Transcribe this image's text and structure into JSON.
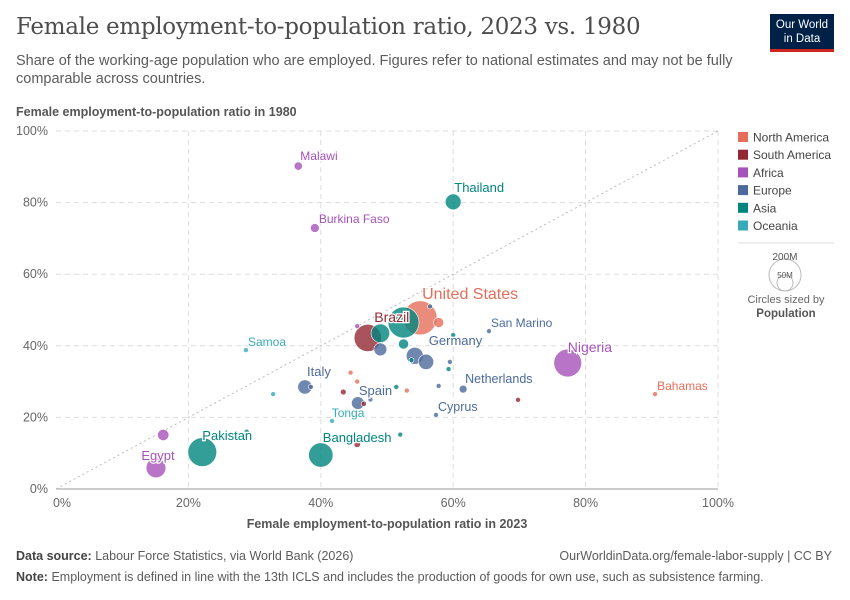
{
  "title": "Female employment-to-population ratio, 2023 vs. 1980",
  "subtitle": "Share of the working-age population who are employed. Figures refer to national estimates and may not be fully comparable across countries.",
  "logo": {
    "line1": "Our World",
    "line2": "in Data"
  },
  "footer": {
    "source_label": "Data source:",
    "source": "Labour Force Statistics, via World Bank (2026)",
    "url": "OurWorldinData.org/female-labor-supply | CC BY",
    "note_label": "Note:",
    "note": "Employment is defined in line with the 13th ICLS and includes the production of goods for own use, such as subsistence farming."
  },
  "chart_data": {
    "type": "scatter",
    "xlabel": "Female employment-to-population ratio in 2023",
    "ylabel": "Female employment-to-population ratio in 1980",
    "xlim": [
      0,
      100
    ],
    "ylim": [
      0,
      100
    ],
    "xticks": [
      "0%",
      "20%",
      "40%",
      "60%",
      "80%",
      "100%"
    ],
    "yticks": [
      "0%",
      "20%",
      "40%",
      "60%",
      "80%",
      "100%"
    ],
    "grid": true,
    "legend_position": "right",
    "diagonal_line": true,
    "colors": {
      "North America": "#e56e5a",
      "South America": "#932834",
      "Africa": "#a652ba",
      "Europe": "#4c6a9c",
      "Asia": "#00847e",
      "Oceania": "#38aaba"
    },
    "legend": [
      "North America",
      "South America",
      "Africa",
      "Europe",
      "Asia",
      "Oceania"
    ],
    "size_legend": {
      "large": "200M",
      "small": "50M",
      "caption": "Circles sized by",
      "variable": "Population"
    },
    "points": [
      {
        "label": "Malawi",
        "region": "Africa",
        "x": 36.6,
        "y": 90.2,
        "pop": 20
      },
      {
        "label": "Thailand",
        "region": "Asia",
        "x": 60.0,
        "y": 80.2,
        "pop": 72
      },
      {
        "label": "Burkina Faso",
        "region": "Africa",
        "x": 39.1,
        "y": 72.9,
        "pop": 23
      },
      {
        "label": "United States",
        "region": "North America",
        "x": 55.0,
        "y": 47.8,
        "pop": 335
      },
      {
        "label": "",
        "region": "North America",
        "x": 57.8,
        "y": 46.5,
        "pop": 30
      },
      {
        "label": "Brazil",
        "region": "South America",
        "x": 47.1,
        "y": 42.2,
        "pop": 216
      },
      {
        "label": "",
        "region": "Asia",
        "x": 52.5,
        "y": 46.5,
        "pop": 277
      },
      {
        "label": "",
        "region": "Asia",
        "x": 49.0,
        "y": 43.5,
        "pop": 100
      },
      {
        "label": "",
        "region": "Europe",
        "x": 49.0,
        "y": 39.0,
        "pop": 48
      },
      {
        "label": "Germany",
        "region": "Europe",
        "x": 54.2,
        "y": 37.2,
        "pop": 84
      },
      {
        "label": "",
        "region": "Europe",
        "x": 55.9,
        "y": 35.5,
        "pop": 68
      },
      {
        "label": "",
        "region": "Asia",
        "x": 52.5,
        "y": 40.5,
        "pop": 30
      },
      {
        "label": "",
        "region": "Asia",
        "x": 53.7,
        "y": 36.0,
        "pop": 6
      },
      {
        "label": "",
        "region": "Europe",
        "x": 59.5,
        "y": 35.5,
        "pop": 5
      },
      {
        "label": "",
        "region": "Asia",
        "x": 59.3,
        "y": 33.5,
        "pop": 3
      },
      {
        "label": "",
        "region": "Asia",
        "x": 60.0,
        "y": 43.0,
        "pop": 2
      },
      {
        "label": "",
        "region": "Africa",
        "x": 45.5,
        "y": 45.5,
        "pop": 2
      },
      {
        "label": "",
        "region": "Europe",
        "x": 56.5,
        "y": 51.0,
        "pop": 3
      },
      {
        "label": "Nigeria",
        "region": "Africa",
        "x": 77.3,
        "y": 35.2,
        "pop": 224
      },
      {
        "label": "Bahamas",
        "region": "North America",
        "x": 90.5,
        "y": 26.5,
        "pop": 0.4
      },
      {
        "label": "San Marino",
        "region": "Europe",
        "x": 65.4,
        "y": 44.1,
        "pop": 0.03
      },
      {
        "label": "Netherlands",
        "region": "Europe",
        "x": 61.5,
        "y": 27.9,
        "pop": 18
      },
      {
        "label": "Cyprus",
        "region": "Europe",
        "x": 57.4,
        "y": 20.7,
        "pop": 1.3
      },
      {
        "label": "",
        "region": "Europe",
        "x": 57.8,
        "y": 28.8,
        "pop": 1
      },
      {
        "label": "",
        "region": "Asia",
        "x": 51.4,
        "y": 28.5,
        "pop": 1
      },
      {
        "label": "",
        "region": "North America",
        "x": 53.0,
        "y": 27.5,
        "pop": 1
      },
      {
        "label": "",
        "region": "North America",
        "x": 44.5,
        "y": 32.5,
        "pop": 1
      },
      {
        "label": "",
        "region": "North America",
        "x": 45.5,
        "y": 30.0,
        "pop": 1
      },
      {
        "label": "Italy",
        "region": "Europe",
        "x": 37.6,
        "y": 28.5,
        "pop": 59
      },
      {
        "label": "",
        "region": "Europe",
        "x": 38.5,
        "y": 28.5,
        "pop": 5
      },
      {
        "label": "Spain",
        "region": "Europe",
        "x": 45.6,
        "y": 24.0,
        "pop": 48
      },
      {
        "label": "",
        "region": "South America",
        "x": 43.4,
        "y": 27.1,
        "pop": 10
      },
      {
        "label": "",
        "region": "South America",
        "x": 46.5,
        "y": 23.8,
        "pop": 8
      },
      {
        "label": "",
        "region": "Europe",
        "x": 47.5,
        "y": 25.0,
        "pop": 1
      },
      {
        "label": "",
        "region": "South America",
        "x": 69.8,
        "y": 24.9,
        "pop": 2
      },
      {
        "label": "Tonga",
        "region": "Oceania",
        "x": 41.7,
        "y": 19.0,
        "pop": 0.1
      },
      {
        "label": "Samoa",
        "region": "Oceania",
        "x": 28.7,
        "y": 38.8,
        "pop": 0.2
      },
      {
        "label": "",
        "region": "Oceania",
        "x": 32.8,
        "y": 26.5,
        "pop": 0.5
      },
      {
        "label": "Pakistan",
        "region": "Asia",
        "x": 22.1,
        "y": 10.3,
        "pop": 240
      },
      {
        "label": "",
        "region": "Asia",
        "x": 28.8,
        "y": 16.0,
        "pop": 0.5
      },
      {
        "label": "Bangladesh",
        "region": "Asia",
        "x": 40.0,
        "y": 9.5,
        "pop": 173
      },
      {
        "label": "",
        "region": "South America",
        "x": 45.5,
        "y": 12.5,
        "pop": 12
      },
      {
        "label": "",
        "region": "Asia",
        "x": 52.0,
        "y": 15.2,
        "pop": 1
      },
      {
        "label": "Egypt",
        "region": "Africa",
        "x": 15.1,
        "y": 5.9,
        "pop": 113
      },
      {
        "label": "",
        "region": "Africa",
        "x": 16.2,
        "y": 15.1,
        "pop": 37
      }
    ]
  }
}
